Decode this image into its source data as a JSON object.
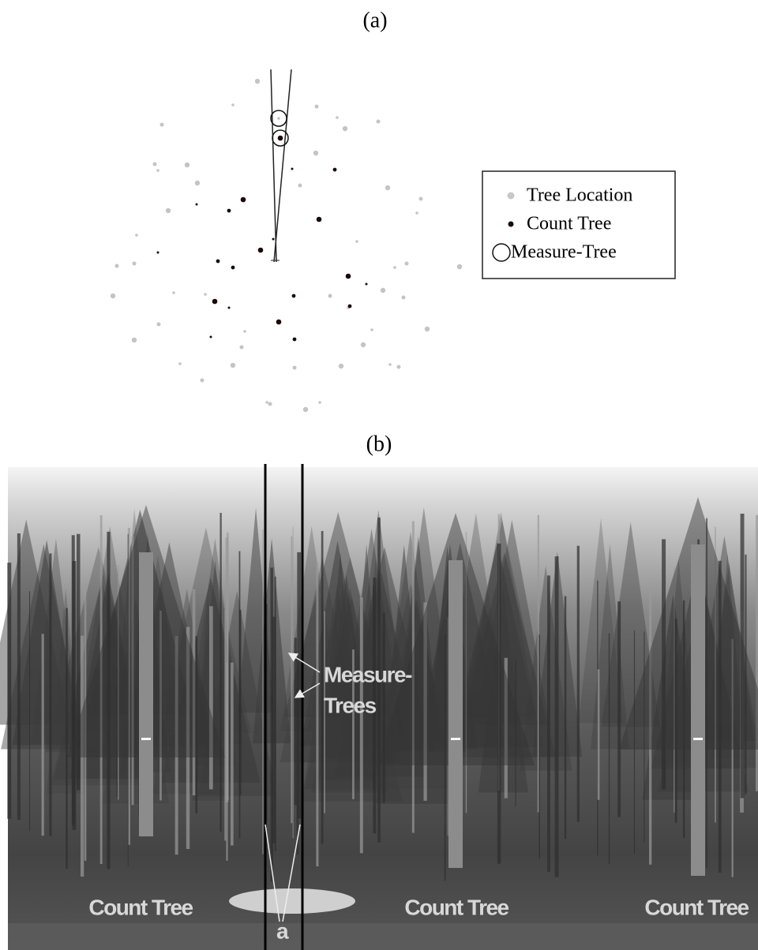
{
  "panel_a": {
    "label": "(a)",
    "legend": [
      "Tree Location",
      "Count Tree",
      "Measure-Tree"
    ]
  },
  "panel_b": {
    "label": "(b)",
    "measure_trees": [
      "Measure-",
      "Trees"
    ],
    "count_tree_labels": [
      "Count Tree",
      "Count Tree",
      "Count Tree"
    ],
    "angle_label": "a"
  }
}
